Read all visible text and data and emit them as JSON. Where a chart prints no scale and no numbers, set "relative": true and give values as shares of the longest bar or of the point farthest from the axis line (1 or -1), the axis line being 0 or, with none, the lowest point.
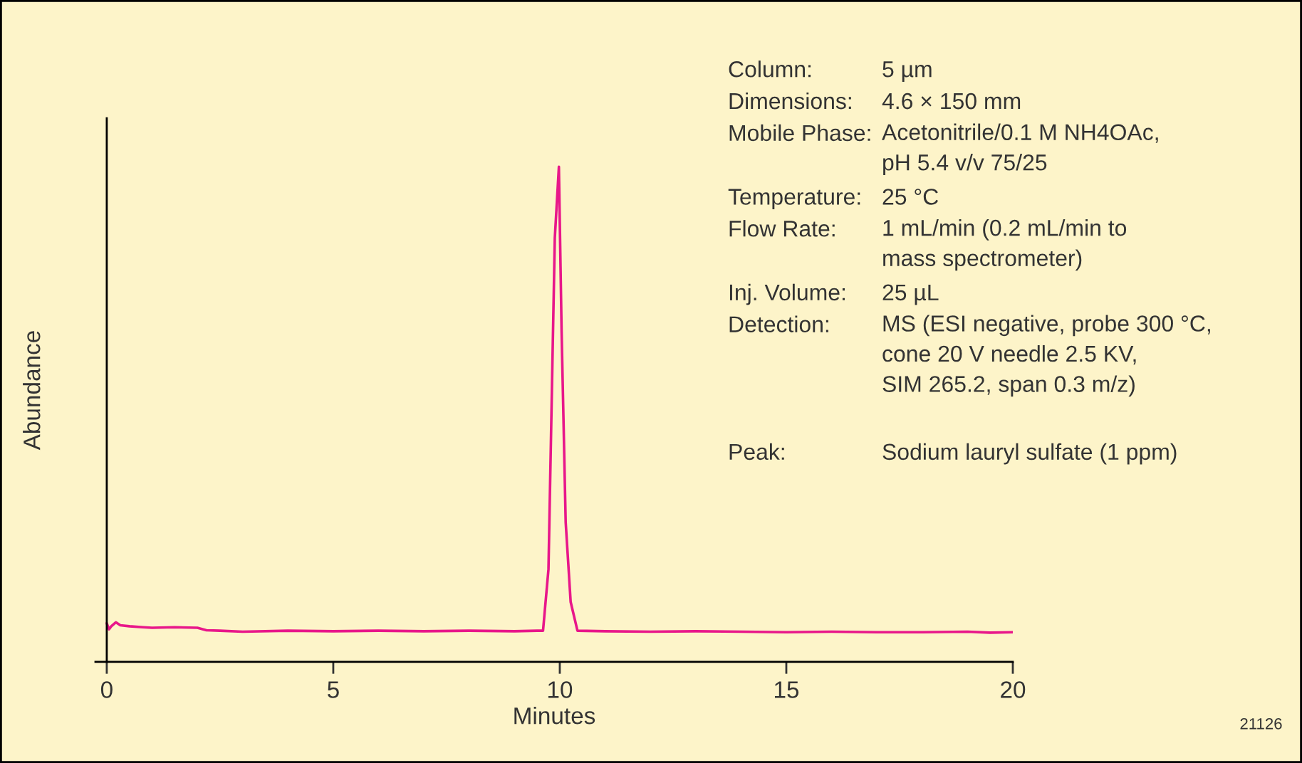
{
  "chart_data": {
    "type": "line",
    "relative": true,
    "xlabel": "Minutes",
    "ylabel": "Abundance",
    "xlim": [
      -0.25,
      20
    ],
    "xticks": [
      0,
      5,
      10,
      15,
      20
    ],
    "tick_labels": "x",
    "legend": false,
    "marker": "none",
    "line_style": "solid",
    "series": [
      {
        "color": "#e8178a",
        "x": [
          0,
          0.05,
          0.1,
          0.2,
          0.3,
          0.5,
          0.8,
          1.0,
          1.5,
          2.0,
          2.2,
          2.5,
          3.0,
          4.0,
          5.0,
          6.0,
          7.0,
          8.0,
          9.0,
          9.5,
          9.63,
          9.75,
          9.83,
          9.89,
          9.98,
          10.04,
          10.13,
          10.24,
          10.39,
          11.0,
          12.0,
          13.0,
          14.0,
          15.0,
          16.0,
          17.0,
          18.0,
          19.0,
          19.5,
          20.0
        ],
        "values": [
          0.078,
          0.066,
          0.072,
          0.08,
          0.074,
          0.072,
          0.07,
          0.069,
          0.07,
          0.069,
          0.064,
          0.063,
          0.061,
          0.063,
          0.062,
          0.063,
          0.062,
          0.063,
          0.062,
          0.063,
          0.063,
          0.187,
          0.569,
          0.856,
          1,
          0.667,
          0.282,
          0.121,
          0.063,
          0.062,
          0.061,
          0.062,
          0.061,
          0.06,
          0.061,
          0.06,
          0.06,
          0.061,
          0.059,
          0.06
        ]
      }
    ],
    "annotations": [
      "Column:\t5 µm",
      "Dimensions:\t4.6 × 150 mm",
      "Mobile Phase:\tAcetonitrile/0.1 M NH4OAc,\npH 5.4 v/v 75/25",
      "Temperature:\t25 °C",
      "Flow Rate:\t1 mL/min (0.2 mL/min to\nmass spectrometer)",
      "Inj. Volume:\t25 µL",
      "Detection:\tMS (ESI negative, probe 300 °C,\ncone 20 V needle 2.5 KV,\nSIM 265.2, span 0.3 m/z)",
      "Peak:\tSodium lauryl sulfate (1 ppm)",
      "21126"
    ]
  }
}
